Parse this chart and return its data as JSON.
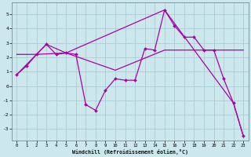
{
  "xlabel": "Windchill (Refroidissement éolien,°C)",
  "background_color": "#cce8ec",
  "grid_color": "#aacdd4",
  "line_color": "#aa00aa",
  "xlim": [
    -0.5,
    23.5
  ],
  "ylim": [
    -3.8,
    5.8
  ],
  "xticks": [
    0,
    1,
    2,
    3,
    4,
    5,
    6,
    7,
    8,
    9,
    10,
    11,
    12,
    13,
    14,
    15,
    16,
    17,
    18,
    19,
    20,
    21,
    22,
    23
  ],
  "yticks": [
    -3,
    -2,
    -1,
    0,
    1,
    2,
    3,
    4,
    5
  ],
  "series": [
    {
      "name": "main_markers",
      "x": [
        0,
        1,
        2,
        3,
        4,
        5,
        6,
        7,
        8,
        9,
        10,
        11,
        12,
        13,
        14,
        15,
        16,
        17,
        18,
        19,
        20,
        21,
        22,
        23
      ],
      "y": [
        0.8,
        1.4,
        2.2,
        2.9,
        2.2,
        2.3,
        2.2,
        -1.3,
        -1.7,
        -0.3,
        0.5,
        0.4,
        0.4,
        2.6,
        2.5,
        5.3,
        4.2,
        3.4,
        3.4,
        2.5,
        2.5,
        0.5,
        -1.2,
        -3.5
      ],
      "marker": "D",
      "markersize": 2.0,
      "linewidth": 0.9
    },
    {
      "name": "line2_smooth",
      "x": [
        0,
        3,
        5,
        15,
        22,
        23
      ],
      "y": [
        0.8,
        2.9,
        2.3,
        5.3,
        -1.2,
        -3.5
      ],
      "marker": null,
      "linewidth": 0.9
    },
    {
      "name": "line3_flat",
      "x": [
        0,
        2,
        5,
        10,
        15,
        19,
        20,
        23
      ],
      "y": [
        2.2,
        2.2,
        2.3,
        1.1,
        2.5,
        2.5,
        2.5,
        2.5
      ],
      "marker": null,
      "linewidth": 0.9
    }
  ]
}
